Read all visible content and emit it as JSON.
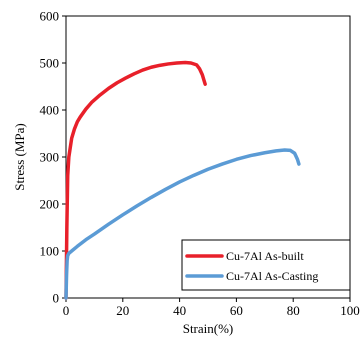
{
  "chart_data": {
    "type": "line",
    "xlabel": "Strain(%)",
    "ylabel": "Stress (MPa)",
    "xlim": [
      0,
      100
    ],
    "ylim": [
      0,
      600
    ],
    "xticks": [
      0,
      20,
      40,
      60,
      80,
      100
    ],
    "yticks": [
      0,
      100,
      200,
      300,
      400,
      500,
      600
    ],
    "grid": false,
    "legend_position": "bottom-right",
    "series": [
      {
        "name": "Cu-7Al As-built",
        "color": "#e8202a",
        "x": [
          0,
          0.3,
          0.6,
          1.0,
          1.5,
          2.0,
          3.0,
          4.0,
          5.0,
          7.0,
          9.0,
          12.0,
          15.0,
          18.0,
          21.0,
          24.0,
          27.0,
          30.0,
          33.0,
          36.0,
          39.0,
          42.0,
          44.0,
          46.0,
          47.0,
          48.0,
          48.5,
          49.0
        ],
        "y": [
          0,
          150,
          260,
          300,
          320,
          340,
          360,
          375,
          385,
          402,
          416,
          432,
          446,
          458,
          468,
          477,
          485,
          491,
          495,
          498,
          500,
          501,
          500,
          496,
          488,
          475,
          465,
          455
        ]
      },
      {
        "name": "Cu-7Al As-Casting",
        "color": "#5b9bd5",
        "x": [
          0,
          0.2,
          0.4,
          0.6,
          1.0,
          2.0,
          4.0,
          7.0,
          10.0,
          15.0,
          20.0,
          25.0,
          30.0,
          35.0,
          40.0,
          45.0,
          50.0,
          55.0,
          60.0,
          65.0,
          70.0,
          74.0,
          77.0,
          79.0,
          80.5,
          81.5,
          82.0
        ],
        "y": [
          0,
          50,
          80,
          90,
          95,
          100,
          110,
          124,
          136,
          157,
          177,
          196,
          214,
          231,
          247,
          261,
          274,
          285,
          295,
          303,
          309,
          313,
          315,
          314,
          308,
          295,
          285
        ]
      }
    ]
  }
}
